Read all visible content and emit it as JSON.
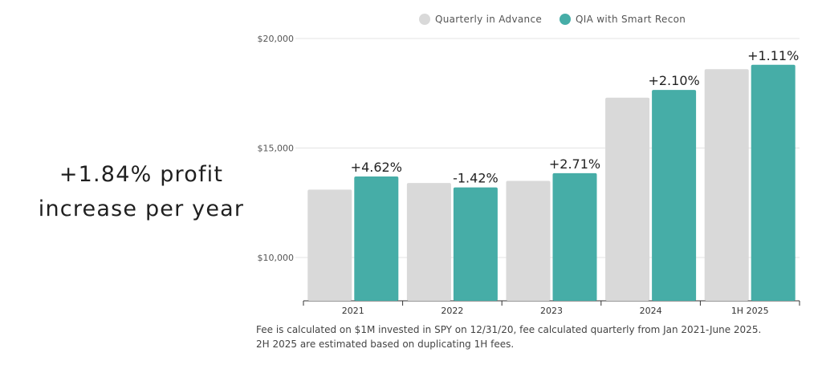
{
  "headline": {
    "line1": "+1.84% profit",
    "line2": "increase per year"
  },
  "chart_data": {
    "type": "bar",
    "categories": [
      "2021",
      "2022",
      "2023",
      "2024",
      "1H 2025"
    ],
    "series": [
      {
        "name": "Quarterly in Advance",
        "color": "#d9d9d9",
        "values": [
          13100,
          13400,
          13500,
          17300,
          18600
        ]
      },
      {
        "name": "QIA with Smart Recon",
        "color": "#46ada7",
        "values": [
          13700,
          13200,
          13850,
          17650,
          18800
        ]
      }
    ],
    "data_labels": [
      "+4.62%",
      "-1.42%",
      "+2.71%",
      "+2.10%",
      "+1.11%"
    ],
    "y_ticks": [
      "$20,000",
      "$15,000",
      "$10,000"
    ],
    "y_tick_values": [
      20000,
      15000,
      10000
    ],
    "ylim": [
      8000,
      20000
    ],
    "grid": true,
    "legend_position": "top",
    "title": "",
    "xlabel": "",
    "ylabel": ""
  },
  "footnote": {
    "line1": "Fee is calculated on $1M invested in SPY on 12/31/20, fee calculated quarterly from Jan 2021-June 2025.",
    "line2": "2H 2025 are estimated based on duplicating 1H fees."
  }
}
